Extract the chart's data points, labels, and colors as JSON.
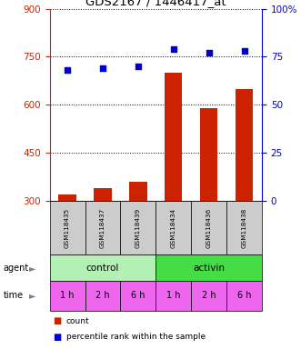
{
  "title": "GDS2167 / 1446417_at",
  "samples": [
    "GSM118435",
    "GSM118437",
    "GSM118439",
    "GSM118434",
    "GSM118436",
    "GSM118438"
  ],
  "count_values": [
    320,
    340,
    360,
    700,
    590,
    650
  ],
  "percentile_values": [
    68,
    69,
    70,
    79,
    77,
    78
  ],
  "ylim_left": [
    300,
    900
  ],
  "ylim_right": [
    0,
    100
  ],
  "yticks_left": [
    300,
    450,
    600,
    750,
    900
  ],
  "yticks_right": [
    0,
    25,
    50,
    75,
    100
  ],
  "bar_color": "#cc2200",
  "dot_color": "#0000cc",
  "agent_colors": [
    "#b3f0b3",
    "#44dd44"
  ],
  "agent_labels": [
    "control",
    "activin"
  ],
  "time_labels": [
    "1 h",
    "2 h",
    "6 h",
    "1 h",
    "2 h",
    "6 h"
  ],
  "time_color": "#ee66ee",
  "bar_width": 0.5,
  "legend_count_color": "#cc2200",
  "legend_dot_color": "#0000cc"
}
